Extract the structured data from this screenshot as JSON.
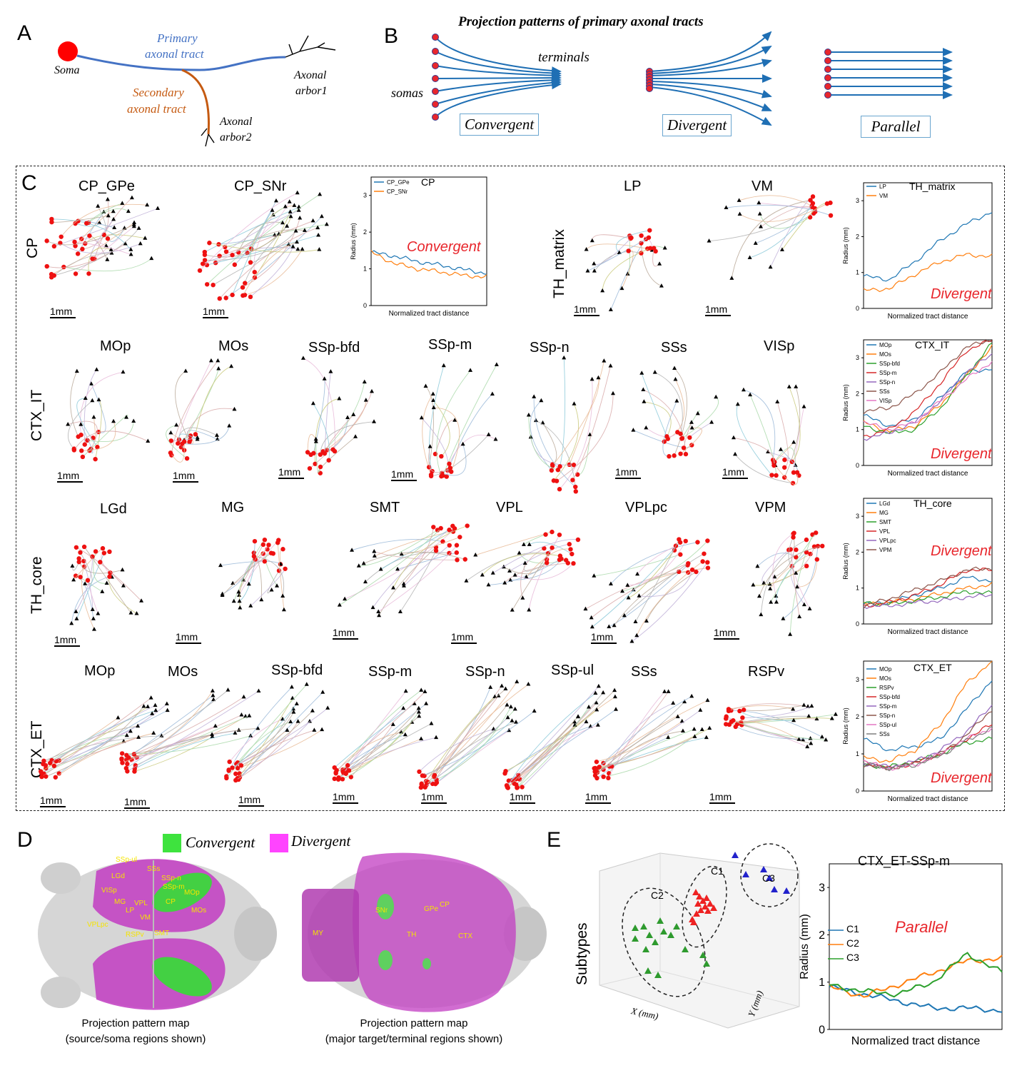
{
  "panelA": {
    "label": "A",
    "soma": "Soma",
    "primary": [
      "Primary",
      "axonal  tract"
    ],
    "secondary": [
      "Secondary",
      "axonal  tract"
    ],
    "arbor1": [
      "Axonal",
      "arbor1"
    ],
    "arbor2": [
      "Axonal",
      "arbor2"
    ]
  },
  "panelB": {
    "label": "B",
    "title": "Projection patterns of primary axonal tracts",
    "terminals": "terminals",
    "somas": "somas",
    "patterns": [
      "Convergent",
      "Divergent",
      "Parallel"
    ]
  },
  "panelC": {
    "label": "C",
    "scale_label": "1mm",
    "rows": [
      {
        "name": "CP",
        "titles": [
          "CP_GPe",
          "CP_SNr"
        ]
      },
      {
        "name": "TH_matrix",
        "titles": [
          "LP",
          "VM"
        ]
      },
      {
        "name": "CTX_IT",
        "titles": [
          "MOp",
          "MOs",
          "SSp-bfd",
          "SSp-m",
          "SSp-n",
          "SSs",
          "VISp"
        ]
      },
      {
        "name": "TH_core",
        "titles": [
          "LGd",
          "MG",
          "SMT",
          "VPL",
          "VPLpc",
          "VPM"
        ]
      },
      {
        "name": "CTX_ET",
        "titles": [
          "MOp",
          "MOs",
          "SSp-bfd",
          "SSp-m",
          "SSp-n",
          "SSp-ul",
          "SSs",
          "RSPv"
        ]
      }
    ]
  },
  "chart_data": [
    {
      "type": "line",
      "title": "CP",
      "pattern": "Convergent",
      "xlabel": "Normalized tract distance",
      "ylabel": "Radius (mm)",
      "ylim": [
        0,
        3.5
      ],
      "x": [
        0,
        0.2,
        0.4,
        0.6,
        0.8,
        1.0
      ],
      "series": [
        {
          "name": "CP_GPe",
          "color": "#1f77b4",
          "values": [
            1.45,
            1.35,
            1.2,
            1.1,
            0.98,
            0.88
          ]
        },
        {
          "name": "CP_SNr",
          "color": "#ff7f0e",
          "values": [
            1.45,
            1.15,
            1.0,
            0.92,
            0.82,
            0.78
          ]
        }
      ]
    },
    {
      "type": "line",
      "title": "TH_matrix",
      "pattern": "Divergent",
      "xlabel": "Normalized tract distance",
      "ylabel": "Radius (mm)",
      "ylim": [
        0,
        3.5
      ],
      "x": [
        0,
        0.2,
        0.4,
        0.6,
        0.8,
        1.0
      ],
      "series": [
        {
          "name": "LP",
          "color": "#1f77b4",
          "values": [
            0.9,
            0.8,
            1.3,
            1.9,
            2.35,
            2.7
          ]
        },
        {
          "name": "VM",
          "color": "#ff7f0e",
          "values": [
            0.5,
            0.55,
            0.95,
            1.3,
            1.5,
            1.45
          ]
        }
      ]
    },
    {
      "type": "line",
      "title": "CTX_IT",
      "pattern": "Divergent",
      "xlabel": "Normalized tract distance",
      "ylabel": "Radius (mm)",
      "ylim": [
        0,
        3.5
      ],
      "x": [
        0,
        0.2,
        0.4,
        0.6,
        0.8,
        1.0
      ],
      "series": [
        {
          "name": "MOp",
          "color": "#1f77b4",
          "values": [
            1.4,
            1.1,
            1.3,
            1.9,
            2.6,
            2.7
          ]
        },
        {
          "name": "MOs",
          "color": "#ff7f0e",
          "values": [
            1.2,
            0.95,
            1.1,
            1.7,
            2.5,
            3.3
          ]
        },
        {
          "name": "SSp-bfd",
          "color": "#2ca02c",
          "values": [
            1.1,
            0.9,
            1.0,
            1.6,
            2.5,
            3.4
          ]
        },
        {
          "name": "SSp-m",
          "color": "#d62728",
          "values": [
            0.8,
            1.0,
            1.5,
            2.3,
            3.2,
            3.5
          ]
        },
        {
          "name": "SSp-n",
          "color": "#9467bd",
          "values": [
            0.75,
            0.9,
            1.2,
            1.8,
            2.6,
            3.1
          ]
        },
        {
          "name": "SSs",
          "color": "#8c564b",
          "values": [
            1.5,
            1.6,
            2.0,
            2.6,
            3.3,
            3.5
          ]
        },
        {
          "name": "VISp",
          "color": "#e377c2",
          "values": [
            1.2,
            1.0,
            1.2,
            1.8,
            2.4,
            2.9
          ]
        }
      ]
    },
    {
      "type": "line",
      "title": "TH_core",
      "pattern": "Divergent",
      "xlabel": "Normalized tract distance",
      "ylabel": "Radius (mm)",
      "ylim": [
        0,
        3.5
      ],
      "x": [
        0,
        0.2,
        0.4,
        0.6,
        0.8,
        1.0
      ],
      "series": [
        {
          "name": "LGd",
          "color": "#1f77b4",
          "values": [
            0.55,
            0.6,
            0.8,
            1.0,
            1.3,
            1.2
          ]
        },
        {
          "name": "MG",
          "color": "#ff7f0e",
          "values": [
            0.55,
            0.6,
            0.7,
            0.85,
            1.0,
            1.1
          ]
        },
        {
          "name": "SMT",
          "color": "#2ca02c",
          "values": [
            0.6,
            0.55,
            0.65,
            0.75,
            0.9,
            0.85
          ]
        },
        {
          "name": "VPL",
          "color": "#d62728",
          "values": [
            0.5,
            0.6,
            0.8,
            1.1,
            1.5,
            1.5
          ]
        },
        {
          "name": "VPLpc",
          "color": "#9467bd",
          "values": [
            0.5,
            0.5,
            0.6,
            0.65,
            0.75,
            0.8
          ]
        },
        {
          "name": "VPM",
          "color": "#8c564b",
          "values": [
            0.5,
            0.7,
            0.95,
            1.2,
            1.5,
            1.55
          ]
        }
      ]
    },
    {
      "type": "line",
      "title": "CTX_ET",
      "pattern": "Divergent",
      "xlabel": "Normalized tract distance",
      "ylabel": "Radius (mm)",
      "ylim": [
        0,
        3.5
      ],
      "x": [
        0,
        0.2,
        0.4,
        0.6,
        0.8,
        1.0
      ],
      "series": [
        {
          "name": "MOp",
          "color": "#1f77b4",
          "values": [
            1.4,
            1.1,
            1.2,
            1.4,
            2.2,
            3.0
          ]
        },
        {
          "name": "MOs",
          "color": "#ff7f0e",
          "values": [
            0.9,
            0.8,
            1.1,
            1.8,
            2.9,
            3.5
          ]
        },
        {
          "name": "RSPv",
          "color": "#2ca02c",
          "values": [
            0.7,
            0.65,
            0.8,
            1.0,
            1.3,
            1.4
          ]
        },
        {
          "name": "SSp-bfd",
          "color": "#d62728",
          "values": [
            0.8,
            0.6,
            0.75,
            1.0,
            1.4,
            1.8
          ]
        },
        {
          "name": "SSp-m",
          "color": "#9467bd",
          "values": [
            0.75,
            0.65,
            0.8,
            1.1,
            1.6,
            2.3
          ]
        },
        {
          "name": "SSp-n",
          "color": "#8c564b",
          "values": [
            0.7,
            0.6,
            0.75,
            1.0,
            1.5,
            2.2
          ]
        },
        {
          "name": "SSp-ul",
          "color": "#e377c2",
          "values": [
            0.8,
            0.6,
            0.7,
            1.0,
            1.4,
            1.7
          ]
        },
        {
          "name": "SSs",
          "color": "#7f7f7f",
          "values": [
            0.75,
            0.6,
            0.7,
            0.95,
            1.35,
            1.7
          ]
        }
      ]
    },
    {
      "type": "line",
      "title": "CTX_ET-SSp-m",
      "pattern": "Parallel",
      "xlabel": "Normalized tract distance",
      "ylabel": "Radius (mm)",
      "ylim": [
        0,
        3.5
      ],
      "x": [
        0,
        0.2,
        0.4,
        0.6,
        0.8,
        1.0
      ],
      "series": [
        {
          "name": "C1",
          "color": "#1f77b4",
          "values": [
            0.9,
            0.75,
            0.6,
            0.45,
            0.45,
            0.4
          ]
        },
        {
          "name": "C2",
          "color": "#ff7f0e",
          "values": [
            0.9,
            0.7,
            0.95,
            1.2,
            1.45,
            1.5
          ]
        },
        {
          "name": "C3",
          "color": "#2ca02c",
          "values": [
            0.95,
            0.8,
            0.75,
            1.0,
            1.6,
            1.2
          ]
        }
      ]
    }
  ],
  "panelD": {
    "label": "D",
    "legend": [
      "Convergent",
      "Divergent"
    ],
    "colors": {
      "convergent": "#3ee33e",
      "divergent": "#ff44ff"
    },
    "left_regions": [
      "SSp-ul",
      "SSs",
      "SSp-n",
      "SSp-m",
      "MOp",
      "LGd",
      "VISp",
      "MG",
      "VPL",
      "LP",
      "CP",
      "VM",
      "MOs",
      "VPLpc",
      "RSPv",
      "SMT"
    ],
    "right_regions": [
      "SNr",
      "GPe",
      "CP",
      "MY",
      "TH",
      "CTX"
    ],
    "captions": [
      [
        "Projection pattern map",
        "(source/soma regions shown)"
      ],
      [
        "Projection pattern map",
        "(major target/terminal regions shown)"
      ]
    ]
  },
  "panelE": {
    "label": "E",
    "ylabel": "Subtypes",
    "clusters": [
      "C1",
      "C2",
      "C3"
    ],
    "xaxis": "X (mm)",
    "yaxis": "Y (mm)",
    "chart_title": "CTX_ET-SSp-m"
  }
}
